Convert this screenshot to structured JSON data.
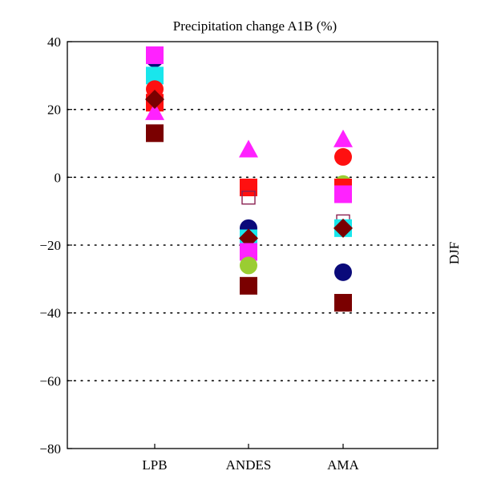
{
  "chart_data": {
    "type": "scatter",
    "title": "Precipitation change A1B (%)",
    "right_label": "DJF",
    "categories": [
      "LPB",
      "ANDES",
      "AMA"
    ],
    "ylim": [
      -80,
      40
    ],
    "yticks": [
      40,
      20,
      0,
      -20,
      -40,
      -60,
      -80
    ],
    "ytick_labels": [
      "40",
      "20",
      "0",
      "−20",
      "−40",
      "−60",
      "−80"
    ],
    "grid": "dotted horizontal at 20, 0, -20, -40, -60",
    "colors": {
      "navy": "#0a0a7a",
      "cyan": "#19e6ec",
      "red": "#ff1010",
      "magenta": "#ff22ff",
      "yellowgreen": "#9acd32",
      "darkred": "#7a0000",
      "purple_outline": "#8b2252"
    },
    "points": [
      {
        "category": "LPB",
        "value": 35,
        "marker": "circle",
        "color": "#0a0a7a"
      },
      {
        "category": "LPB",
        "value": 30,
        "marker": "square",
        "color": "#19e6ec"
      },
      {
        "category": "LPB",
        "value": 26,
        "marker": "circle",
        "color": "#ff1010"
      },
      {
        "category": "LPB",
        "value": 22,
        "marker": "square",
        "color": "#ff1010"
      },
      {
        "category": "LPB",
        "value": 36,
        "marker": "square",
        "color": "#ff22ff"
      },
      {
        "category": "LPB",
        "value": 19,
        "marker": "triangle",
        "color": "#ff22ff"
      },
      {
        "category": "LPB",
        "value": 23,
        "marker": "diamond",
        "color": "#7a0000"
      },
      {
        "category": "LPB",
        "value": 13,
        "marker": "square",
        "color": "#7a0000"
      },
      {
        "category": "ANDES",
        "value": 8,
        "marker": "triangle",
        "color": "#ff22ff"
      },
      {
        "category": "ANDES",
        "value": -3,
        "marker": "circle",
        "color": "#ff1010"
      },
      {
        "category": "ANDES",
        "value": -3,
        "marker": "square",
        "color": "#ff1010"
      },
      {
        "category": "ANDES",
        "value": -6,
        "marker": "square-open",
        "color": "#8b2252"
      },
      {
        "category": "ANDES",
        "value": -15,
        "marker": "circle",
        "color": "#0a0a7a"
      },
      {
        "category": "ANDES",
        "value": -18,
        "marker": "square",
        "color": "#19e6ec"
      },
      {
        "category": "ANDES",
        "value": -18,
        "marker": "diamond",
        "color": "#7a0000"
      },
      {
        "category": "ANDES",
        "value": -22,
        "marker": "square",
        "color": "#ff22ff"
      },
      {
        "category": "ANDES",
        "value": -26,
        "marker": "circle",
        "color": "#9acd32"
      },
      {
        "category": "ANDES",
        "value": -32,
        "marker": "square",
        "color": "#7a0000"
      },
      {
        "category": "AMA",
        "value": 11,
        "marker": "triangle",
        "color": "#ff22ff"
      },
      {
        "category": "AMA",
        "value": 6,
        "marker": "circle",
        "color": "#ff1010"
      },
      {
        "category": "AMA",
        "value": -2,
        "marker": "circle",
        "color": "#9acd32"
      },
      {
        "category": "AMA",
        "value": -3,
        "marker": "square",
        "color": "#ff1010"
      },
      {
        "category": "AMA",
        "value": -5,
        "marker": "square",
        "color": "#ff22ff"
      },
      {
        "category": "AMA",
        "value": -13,
        "marker": "square-open",
        "color": "#8b2252"
      },
      {
        "category": "AMA",
        "value": -15,
        "marker": "square",
        "color": "#19e6ec"
      },
      {
        "category": "AMA",
        "value": -15,
        "marker": "diamond",
        "color": "#7a0000"
      },
      {
        "category": "AMA",
        "value": -28,
        "marker": "circle",
        "color": "#0a0a7a"
      },
      {
        "category": "AMA",
        "value": -37,
        "marker": "square",
        "color": "#7a0000"
      }
    ]
  }
}
